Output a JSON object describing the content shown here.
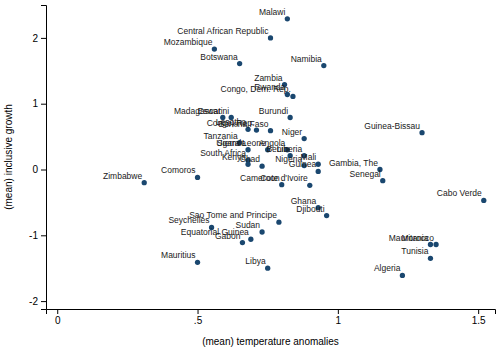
{
  "chart_data": {
    "type": "scatter",
    "x_label": "(mean) temperature anomalies",
    "y_label": "(mean) inclusive growth",
    "color": "#1a476f",
    "marker": "circle",
    "grid": false,
    "xlim": [
      -0.04,
      1.56
    ],
    "ylim": [
      -2.12,
      2.5
    ],
    "xticks": [
      0,
      {
        "value": 0.5,
        "label": ".5"
      },
      1,
      1.5
    ],
    "yticks": [
      -2,
      -1,
      0,
      1,
      2
    ],
    "point_labels": [
      "Malawi",
      "Central African Republic",
      "Mozambique",
      "Botswana",
      "Namibia",
      "Zambia",
      "Rwanda",
      "Congo, Dem. Rep.",
      "Madagascar",
      "Eswatini",
      "Burundi",
      "Lesotho",
      "Congo, Rep.",
      "Burkina Faso",
      "Niger",
      "Guinea-Bissau",
      "Tanzania",
      "Uganda",
      "Sierra Leone",
      "Angola",
      "Benin",
      "Liberia",
      "South Africa",
      "Kenya",
      "Chad",
      "Nigeria",
      "Mali",
      "Guinea",
      "Gambia, The",
      "Senegal",
      "Comoros",
      "Zimbabwe",
      "Cameroon",
      "Cote d'Ivoire",
      "Cabo Verde",
      "Ghana",
      "Djibouti",
      "Sao Tome and Principe",
      "Seychelles",
      "Sudan",
      "Equatorial Guinea",
      "Gabon",
      "Mauritius",
      "Libya",
      "Mauritania",
      "Morocco",
      "Tunisia",
      "Algeria"
    ],
    "x": [
      0.82,
      0.76,
      0.56,
      0.65,
      0.95,
      0.81,
      0.82,
      0.84,
      0.59,
      0.62,
      0.83,
      0.68,
      0.71,
      0.76,
      0.88,
      1.3,
      0.65,
      0.68,
      0.75,
      0.82,
      0.83,
      0.88,
      0.68,
      0.68,
      0.73,
      0.88,
      0.93,
      0.93,
      1.15,
      1.16,
      0.5,
      0.31,
      0.8,
      0.9,
      1.52,
      0.93,
      0.96,
      0.79,
      0.55,
      0.73,
      0.69,
      0.66,
      0.5,
      0.75,
      1.33,
      1.35,
      1.33,
      1.23
    ],
    "values": [
      2.29,
      2.0,
      1.83,
      1.61,
      1.58,
      1.29,
      1.14,
      1.11,
      0.79,
      0.79,
      0.79,
      0.61,
      0.6,
      0.59,
      0.47,
      0.56,
      0.41,
      0.3,
      0.3,
      0.3,
      0.21,
      0.21,
      0.14,
      0.08,
      0.05,
      0.06,
      0.08,
      -0.03,
      0.0,
      -0.17,
      -0.12,
      -0.2,
      -0.23,
      -0.24,
      -0.47,
      -0.58,
      -0.7,
      -0.8,
      -0.88,
      -0.95,
      -1.06,
      -1.11,
      -1.41,
      -1.5,
      -1.14,
      -1.14,
      -1.35,
      -1.61
    ]
  }
}
